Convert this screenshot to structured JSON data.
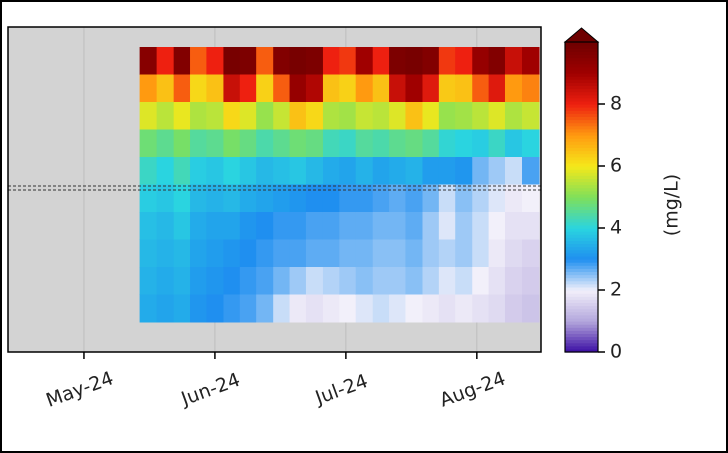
{
  "chart_data": {
    "type": "heatmap",
    "xlim": [
      4.42,
      8.49
    ],
    "xticks": [
      {
        "value": 5,
        "label": "May-24"
      },
      {
        "value": 6,
        "label": "Jun-24"
      },
      {
        "value": 7,
        "label": "Jul-24"
      },
      {
        "value": 8,
        "label": "Aug-24"
      }
    ],
    "x": [
      5.49,
      5.62,
      5.75,
      5.87,
      6.0,
      6.13,
      6.25,
      6.38,
      6.51,
      6.63,
      6.76,
      6.89,
      7.01,
      7.14,
      7.27,
      7.39,
      7.52,
      7.65,
      7.77,
      7.9,
      8.03,
      8.15,
      8.28,
      8.41
    ],
    "z": [
      [
        9.5,
        8,
        9.6,
        7.5,
        8,
        9.8,
        9.7,
        7.5,
        9.6,
        9.8,
        9.7,
        8,
        7.8,
        9,
        8,
        9.7,
        9.8,
        9.6,
        7.8,
        8,
        9.2,
        9.6,
        8.5,
        9
      ],
      [
        7,
        6.5,
        7.5,
        6.2,
        6.5,
        8.5,
        8,
        6.3,
        7.5,
        9.2,
        8.8,
        6.5,
        6.3,
        7,
        6.5,
        8.5,
        9,
        8.2,
        6.4,
        6.5,
        7.5,
        8.2,
        7,
        7.2
      ],
      [
        5.8,
        5.5,
        5.9,
        5.4,
        5.5,
        6.2,
        5.8,
        5.2,
        5.6,
        6.5,
        6.2,
        5.4,
        5.3,
        5.6,
        5.5,
        5.8,
        6.5,
        5.9,
        5.2,
        5.3,
        5.5,
        5.8,
        5.4,
        5.6
      ],
      [
        4.8,
        4.6,
        4.9,
        4.5,
        4.6,
        4.9,
        4.7,
        4.4,
        4.6,
        4.8,
        4.7,
        4.3,
        4.2,
        4.5,
        4.4,
        4.6,
        4.7,
        4.5,
        4.1,
        4,
        3.9,
        4.2,
        3.8,
        4
      ],
      [
        4.2,
        4,
        4.3,
        3.9,
        3.8,
        4,
        3.8,
        3.6,
        3.7,
        3.8,
        3.6,
        3.4,
        3.3,
        3.5,
        3.3,
        3.4,
        3.5,
        3.2,
        3.2,
        3.1,
        2.6,
        2.4,
        2.2,
        2.8
      ],
      [
        3.9,
        3.8,
        4,
        3.6,
        3.5,
        3.6,
        3.4,
        3.3,
        3.2,
        3.1,
        3,
        3,
        2.9,
        2.9,
        2.8,
        2.7,
        2.8,
        2.6,
        2.2,
        2.5,
        2.3,
        2.1,
        1.9,
        2
      ],
      [
        3.7,
        3.6,
        3.8,
        3.4,
        3.3,
        3.3,
        3.1,
        3,
        2.9,
        2.9,
        2.8,
        2.8,
        2.7,
        2.7,
        2.6,
        2.6,
        2.7,
        2.4,
        2.1,
        2.4,
        2.2,
        2,
        1.8,
        1.8
      ],
      [
        3.6,
        3.5,
        3.6,
        3.3,
        3.2,
        3.1,
        3,
        2.9,
        2.8,
        2.8,
        2.7,
        2.7,
        2.6,
        2.6,
        2.5,
        2.5,
        2.6,
        2.4,
        2.3,
        2.4,
        2.2,
        1.9,
        1.7,
        1.6
      ],
      [
        3.5,
        3.4,
        3.5,
        3.2,
        3.1,
        3,
        2.9,
        2.8,
        2.6,
        2.4,
        2.2,
        2.3,
        2.4,
        2.5,
        2.4,
        2.4,
        2.5,
        2.3,
        2.1,
        2.2,
        2,
        1.8,
        1.6,
        1.5
      ],
      [
        3.4,
        3.3,
        3.4,
        3.1,
        3,
        2.9,
        2.8,
        2.6,
        2.2,
        1.9,
        1.8,
        1.9,
        2,
        2.1,
        2.2,
        2.1,
        2,
        1.9,
        1.8,
        1.9,
        1.8,
        1.7,
        1.5,
        1.4
      ]
    ],
    "clim": [
      0,
      10
    ],
    "cticks": [
      0,
      2,
      4,
      6,
      8
    ],
    "colorbar_label": "(mg/L)",
    "colormap": [
      "#3a0ca3",
      "#b3a6dc",
      "#f2f0fa",
      "#1f8ff0",
      "#2ad4e0",
      "#7fe05a",
      "#f5e81a",
      "#ff9a10",
      "#ee2010",
      "#a00000",
      "#6e0000"
    ],
    "grid": true
  }
}
